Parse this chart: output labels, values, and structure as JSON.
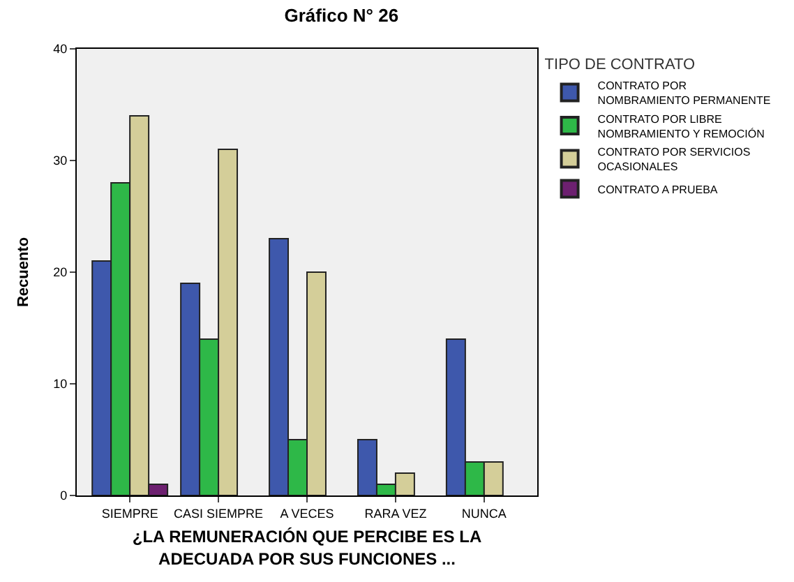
{
  "chart_data": {
    "type": "bar",
    "title": "Gráfico N° 26",
    "xlabel": "¿LA REMUNERACIÓN QUE PERCIBE ES LA ADECUADA POR SUS FUNCIONES ...",
    "ylabel": "Recuento",
    "legend_title": "TIPO DE CONTRATO",
    "categories": [
      "SIEMPRE",
      "CASI SIEMPRE",
      "A VECES",
      "RARA VEZ",
      "NUNCA"
    ],
    "series": [
      {
        "name": "CONTRATO POR NOMBRAMIENTO PERMANENTE",
        "color": "#3e58ac",
        "values": [
          21,
          19,
          23,
          5,
          14
        ]
      },
      {
        "name": "CONTRATO POR LIBRE NOMBRAMIENTO Y REMOCIÓN",
        "color": "#2eb848",
        "values": [
          28,
          14,
          5,
          1,
          3
        ]
      },
      {
        "name": "CONTRATO POR SERVICIOS OCASIONALES",
        "color": "#d4ce99",
        "values": [
          34,
          31,
          20,
          2,
          3
        ]
      },
      {
        "name": "CONTRATO A PRUEBA",
        "color": "#6d2070",
        "values": [
          1,
          null,
          null,
          null,
          null
        ]
      }
    ],
    "ylim": [
      0,
      40
    ],
    "yticks": [
      0,
      10,
      20,
      30,
      40
    ],
    "grid": false,
    "legend": "top right"
  }
}
